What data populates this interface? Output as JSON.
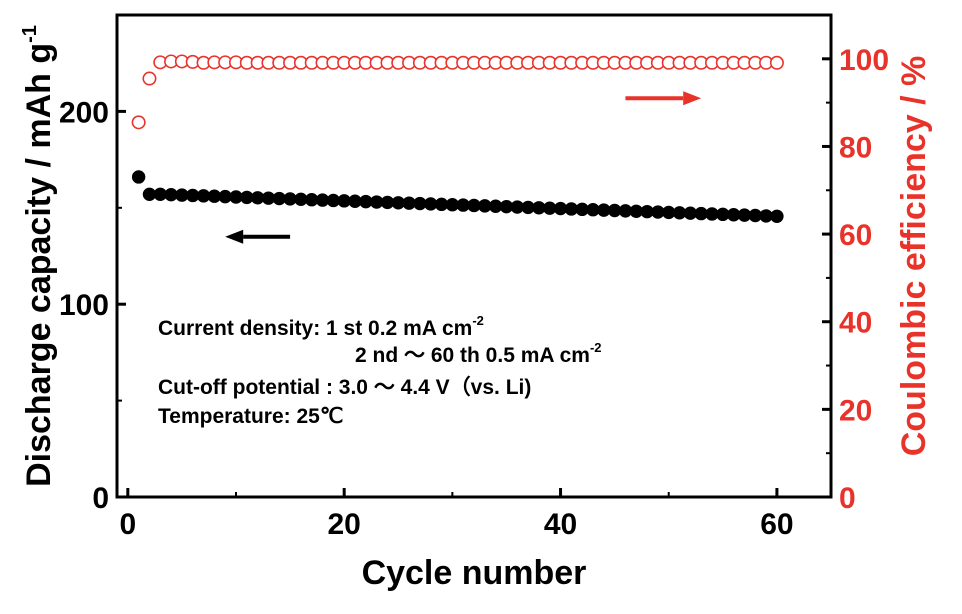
{
  "chart_data": {
    "type": "scatter",
    "colors": {
      "discharge": "#000000",
      "coulombic": "#e8332a"
    },
    "x": {
      "label": "Cycle number",
      "lim": [
        -1,
        65
      ],
      "ticks": [
        0,
        20,
        40,
        60
      ],
      "tick_labels": [
        "0",
        "20",
        "40",
        "60"
      ]
    },
    "y_left": {
      "label": "Discharge capacity / mAh g",
      "label_sup": "-1",
      "lim": [
        0,
        250
      ],
      "ticks": [
        0,
        100,
        200
      ],
      "tick_labels": [
        "0",
        "100",
        "200"
      ]
    },
    "y_right": {
      "label": "Coulombic efficiency / %",
      "lim": [
        0,
        110
      ],
      "ticks": [
        0,
        20,
        40,
        60,
        80,
        100
      ],
      "tick_labels": [
        "0",
        "20",
        "40",
        "60",
        "80",
        "100"
      ]
    },
    "series": [
      {
        "axis": "left",
        "marker": "filled-circle",
        "color": "#000000",
        "x": [
          1,
          2,
          3,
          4,
          5,
          6,
          7,
          8,
          9,
          10,
          11,
          12,
          13,
          14,
          15,
          16,
          17,
          18,
          19,
          20,
          21,
          22,
          23,
          24,
          25,
          26,
          27,
          28,
          29,
          30,
          31,
          32,
          33,
          34,
          35,
          36,
          37,
          38,
          39,
          40,
          41,
          42,
          43,
          44,
          45,
          46,
          47,
          48,
          49,
          50,
          51,
          52,
          53,
          54,
          55,
          56,
          57,
          58,
          59,
          60
        ],
        "values": [
          166,
          157,
          157,
          156.8,
          156.6,
          156.4,
          156.2,
          156,
          155.8,
          155.6,
          155.4,
          155.2,
          155,
          154.8,
          154.6,
          154.4,
          154.2,
          154,
          153.8,
          153.6,
          153.4,
          153.2,
          153,
          152.8,
          152.6,
          152.4,
          152.2,
          152,
          151.8,
          151.6,
          151.4,
          151.2,
          151,
          150.8,
          150.6,
          150.4,
          150.2,
          150,
          149.8,
          149.6,
          149.4,
          149.2,
          149,
          148.8,
          148.6,
          148.4,
          148.2,
          148,
          147.8,
          147.6,
          147.4,
          147.2,
          147,
          146.8,
          146.6,
          146.4,
          146.2,
          146,
          145.8,
          145.6
        ]
      },
      {
        "axis": "right",
        "marker": "open-circle",
        "color": "#e8332a",
        "x": [
          1,
          2,
          3,
          4,
          5,
          6,
          7,
          8,
          9,
          10,
          11,
          12,
          13,
          14,
          15,
          16,
          17,
          18,
          19,
          20,
          21,
          22,
          23,
          24,
          25,
          26,
          27,
          28,
          29,
          30,
          31,
          32,
          33,
          34,
          35,
          36,
          37,
          38,
          39,
          40,
          41,
          42,
          43,
          44,
          45,
          46,
          47,
          48,
          49,
          50,
          51,
          52,
          53,
          54,
          55,
          56,
          57,
          58,
          59,
          60
        ],
        "values": [
          85.5,
          95.5,
          99.2,
          99.4,
          99.4,
          99.3,
          99.1,
          99.2,
          99.2,
          99.2,
          99.1,
          99.1,
          99.1,
          99.1,
          99.1,
          99.1,
          99.1,
          99.1,
          99.1,
          99.1,
          99.1,
          99.1,
          99.1,
          99.1,
          99.1,
          99.1,
          99.1,
          99.1,
          99.1,
          99.1,
          99.1,
          99.1,
          99.1,
          99.1,
          99.1,
          99.1,
          99.1,
          99.1,
          99.1,
          99.1,
          99.1,
          99.1,
          99.1,
          99.1,
          99.1,
          99.1,
          99.1,
          99.1,
          99.1,
          99.1,
          99.1,
          99.1,
          99.1,
          99.1,
          99.1,
          99.1,
          99.1,
          99.1,
          99.1,
          99.1
        ]
      }
    ],
    "arrows": [
      {
        "axis": "left",
        "direction": "left",
        "color": "#000000",
        "x_from": 15,
        "x_to": 9,
        "y": 135
      },
      {
        "axis": "right",
        "direction": "right",
        "color": "#e8332a",
        "x_from": 46,
        "x_to": 53,
        "y": 91
      }
    ],
    "annotation": {
      "line1": {
        "text": "Current density: 1 st 0.2 mA cm",
        "sup": "-2"
      },
      "line2": {
        "text": "2 nd  ～ 60 th  0.5 mA cm",
        "sup": "-2"
      },
      "line3": {
        "text": "Cut-off potential : 3.0 ～ 4.4 V（vs. Li)"
      },
      "line4": {
        "text": "Temperature: 25℃"
      }
    }
  }
}
